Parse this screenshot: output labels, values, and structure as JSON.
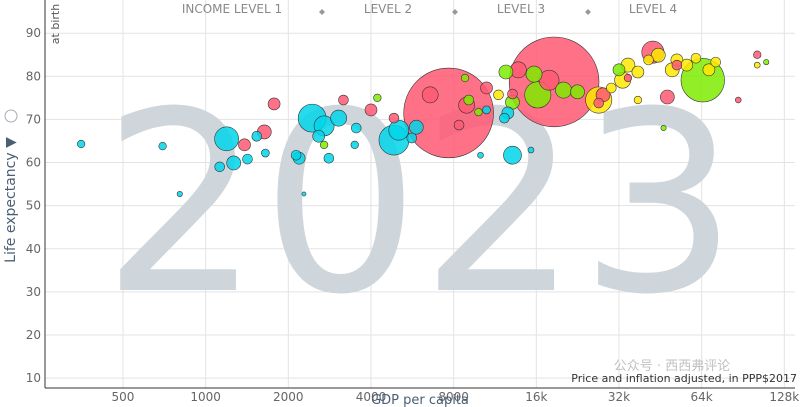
{
  "chart_data": {
    "type": "bubble",
    "year": "2023",
    "legend_items": [
      "INCOME LEVEL 1",
      "LEVEL 2",
      "LEVEL 3",
      "LEVEL 4"
    ],
    "ylabel": "Life expectancy ▼",
    "ylabel_note": "at birth",
    "xlabel": "GDP per capita",
    "annotation": "Price and inflation adjusted, in PPP$2017",
    "watermark": "公众号 · 西西弗评论",
    "log_x": true,
    "grid": true,
    "xlim": [
      260,
      140000
    ],
    "ylim": [
      7.7,
      97.7
    ],
    "xticks": [
      500,
      1000,
      2000,
      4000,
      8000,
      {
        "value": 16000,
        "label": "16k"
      },
      {
        "value": 32000,
        "label": "32k"
      },
      {
        "value": 64000,
        "label": "64k"
      },
      {
        "value": 128000,
        "label": "128k"
      }
    ],
    "yticks": [
      10,
      20,
      30,
      40,
      50,
      60,
      70,
      80,
      90
    ],
    "series": [
      {
        "color": "#00d5e9",
        "x": [
          352,
          697,
          805,
          1192,
          1125,
          1265,
          1420,
          1535,
          1650,
          2135,
          2190,
          2280,
          2443,
          2580,
          2700,
          2810,
          3050,
          3535,
          3490,
          4850,
          5050,
          5630,
          5850,
          10540,
          12240,
          13100,
          12600,
          15300,
          10020
        ],
        "values": [
          64.3,
          63.8,
          52.7,
          65.5,
          59,
          59.9,
          60.8,
          66.1,
          62.2,
          61.7,
          61,
          52.7,
          70.3,
          66.1,
          68.5,
          61,
          70.3,
          68,
          64.1,
          65.2,
          67.5,
          65.7,
          68.2,
          72.2,
          70.3,
          61.7,
          71.5,
          62.9,
          61.7
        ],
        "sizes": [
          10,
          10,
          5,
          100,
          17,
          34,
          17,
          17,
          11,
          17,
          25,
          3,
          136,
          25,
          70,
          17,
          45,
          17,
          10,
          156,
          70,
          17,
          34,
          11,
          17,
          56,
          25,
          6,
          6
        ]
      },
      {
        "color": "#ff5872",
        "x": [
          1385,
          1635,
          1775,
          3175,
          4000,
          4850,
          7670,
          6570,
          8920,
          8370,
          10540,
          13100,
          13760,
          18570,
          17800,
          28000,
          27000,
          42500,
          48000,
          52000,
          102000,
          87000,
          34500
        ],
        "values": [
          64.1,
          67.1,
          73.6,
          74.5,
          72.2,
          70.3,
          71.5,
          75.7,
          73.3,
          68.7,
          77.3,
          75.9,
          81.5,
          78.7,
          79.1,
          75.7,
          73.8,
          85.6,
          75.2,
          82.6,
          85,
          74.5,
          79.6
        ],
        "sizes": [
          25,
          34,
          25,
          17,
          25,
          17,
          1400,
          45,
          45,
          17,
          25,
          17,
          45,
          1400,
          70,
          34,
          17,
          85,
          34,
          17,
          10,
          6,
          10
        ]
      },
      {
        "color": "#7feb00",
        "x": [
          2700,
          4220,
          8800,
          9080,
          9850,
          12400,
          13100,
          15700,
          16200,
          20100,
          22600,
          32000,
          64600,
          46500,
          110000
        ],
        "values": [
          64.1,
          75,
          79.6,
          74.5,
          71.7,
          81,
          74,
          80.5,
          75.7,
          76.8,
          76.4,
          81.5,
          79.1,
          68,
          83.3
        ],
        "sizes": [
          10,
          10,
          10,
          17,
          10,
          34,
          34,
          45,
          120,
          45,
          34,
          25,
          330,
          5,
          5
        ]
      },
      {
        "color": "#ffe700",
        "x": [
          11650,
          27000,
          30000,
          33000,
          34500,
          37500,
          41000,
          44500,
          50000,
          52000,
          56500,
          61000,
          68000,
          72000,
          102000,
          37500
        ],
        "values": [
          75.7,
          74.5,
          77.3,
          79.1,
          82.6,
          81,
          83.8,
          84.9,
          81.5,
          83.8,
          82.6,
          84.2,
          81.5,
          83.3,
          82.6,
          74.5
        ],
        "sizes": [
          17,
          120,
          17,
          45,
          34,
          25,
          17,
          34,
          34,
          25,
          25,
          17,
          25,
          17,
          6,
          10
        ]
      }
    ]
  }
}
